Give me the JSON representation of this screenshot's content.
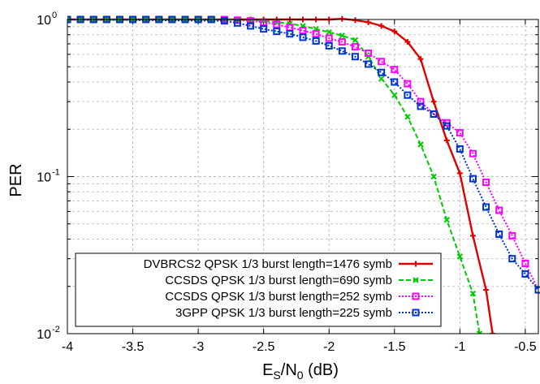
{
  "chart_data": {
    "type": "line",
    "title": "",
    "xlabel": {
      "base": "E",
      "sub1": "S",
      "mid": "/N",
      "sub2": "0",
      "tail": " (dB)"
    },
    "ylabel": "PER",
    "xlim": [
      -4,
      -0.4
    ],
    "ylim": [
      0.01,
      1
    ],
    "yscale": "log",
    "grid": true,
    "legend_position": "bottom-right",
    "x_ticks": [
      -4,
      -3.5,
      -3,
      -2.5,
      -2,
      -1.5,
      -1,
      -0.5
    ],
    "x_tick_labels": [
      "-4",
      "-3.5",
      "-3",
      "-2.5",
      "-2",
      "-1.5",
      "-1",
      "-0.5"
    ],
    "y_ticks": [
      {
        "value": 1,
        "base": "10",
        "exp": "0"
      },
      {
        "value": 0.1,
        "base": "10",
        "exp": "-1"
      },
      {
        "value": 0.01,
        "base": "10",
        "exp": "-2"
      }
    ],
    "series": [
      {
        "name": "DVBRCS2 QPSK 1/3 burst length=1476 symb",
        "color": "#e00000",
        "dash": "solid",
        "marker": "plus",
        "x": [
          -4,
          -2.1,
          -2,
          -1.9,
          -1.8,
          -1.7,
          -1.6,
          -1.5,
          -1.4,
          -1.3,
          -1.2,
          -1.1,
          -1.0,
          -0.9,
          -0.8,
          -0.75
        ],
        "y": [
          1,
          1,
          1,
          1.01,
          0.99,
          0.96,
          0.91,
          0.84,
          0.72,
          0.56,
          0.3,
          0.17,
          0.105,
          0.042,
          0.019,
          0.01
        ]
      },
      {
        "name": "CCSDS QPSK 1/3 burst length=690 symb",
        "color": "#00cc00",
        "dash": "dashed",
        "marker": "x",
        "x": [
          -4,
          -2.7,
          -2.6,
          -2.5,
          -2.4,
          -2.3,
          -2.2,
          -2.1,
          -2.0,
          -1.9,
          -1.8,
          -1.7,
          -1.6,
          -1.5,
          -1.4,
          -1.3,
          -1.2,
          -1.1,
          -1.0,
          -0.9,
          -0.85
        ],
        "y": [
          1,
          1,
          0.99,
          0.98,
          0.96,
          0.94,
          0.91,
          0.87,
          0.83,
          0.79,
          0.74,
          0.58,
          0.42,
          0.33,
          0.24,
          0.16,
          0.1,
          0.053,
          0.031,
          0.018,
          0.01
        ]
      },
      {
        "name": "CCSDS QPSK 1/3 burst length=252 symb",
        "color": "#ff00ff",
        "dash": "dotted",
        "marker": "square",
        "x": [
          -4,
          -2.9,
          -2.8,
          -2.7,
          -2.6,
          -2.5,
          -2.4,
          -2.3,
          -2.2,
          -2.1,
          -2.0,
          -1.9,
          -1.8,
          -1.7,
          -1.6,
          -1.5,
          -1.4,
          -1.3,
          -1.2,
          -1.1,
          -1.0,
          -0.9,
          -0.8,
          -0.7,
          -0.6,
          -0.5,
          -0.4
        ],
        "y": [
          1,
          1,
          1,
          0.99,
          0.98,
          0.96,
          0.93,
          0.89,
          0.85,
          0.81,
          0.76,
          0.72,
          0.67,
          0.61,
          0.54,
          0.48,
          0.39,
          0.3,
          0.25,
          0.22,
          0.19,
          0.14,
          0.092,
          0.061,
          0.042,
          0.028,
          0.019
        ]
      },
      {
        "name": "3GPP QPSK 1/3 burst length=225 symb",
        "color": "#0033cc",
        "dash": "dotted",
        "marker": "square",
        "x": [
          -4,
          -2.8,
          -2.7,
          -2.6,
          -2.5,
          -2.4,
          -2.3,
          -2.2,
          -2.1,
          -2.0,
          -1.9,
          -1.8,
          -1.7,
          -1.6,
          -1.5,
          -1.4,
          -1.3,
          -1.2,
          -1.1,
          -1.0,
          -0.9,
          -0.8,
          -0.7,
          -0.6,
          -0.5,
          -0.4
        ],
        "y": [
          1,
          0.98,
          0.95,
          0.91,
          0.87,
          0.84,
          0.81,
          0.77,
          0.73,
          0.68,
          0.63,
          0.58,
          0.52,
          0.46,
          0.4,
          0.33,
          0.28,
          0.25,
          0.21,
          0.15,
          0.097,
          0.064,
          0.043,
          0.03,
          0.024,
          0.019
        ]
      }
    ]
  }
}
